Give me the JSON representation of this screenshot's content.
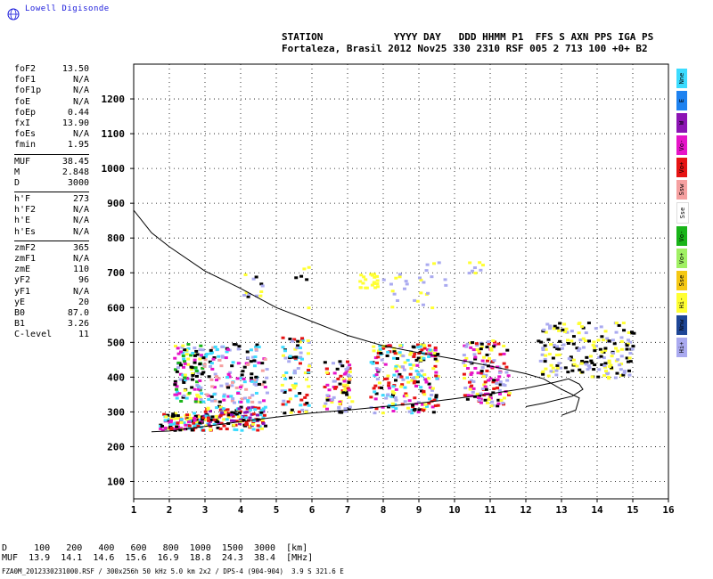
{
  "brand": "Lowell Digisonde",
  "header": {
    "line1": "STATION            YYYY DAY   DDD HHMM P1  FFS S AXN PPS IGA PS",
    "line2": "Fortaleza, Brasil 2012 Nov25 330 2310 RSF 005 2 713 100 +0+ B2"
  },
  "params": [
    {
      "label": "foF2",
      "value": "13.50"
    },
    {
      "label": "foF1",
      "value": "N/A"
    },
    {
      "label": "foF1p",
      "value": "N/A"
    },
    {
      "label": "foE",
      "value": "N/A"
    },
    {
      "label": "foEp",
      "value": "0.44"
    },
    {
      "label": "fxI",
      "value": "13.90"
    },
    {
      "label": "foEs",
      "value": "N/A"
    },
    {
      "label": "fmin",
      "value": "1.95"
    },
    {
      "sep": true
    },
    {
      "label": "MUF",
      "value": "38.45"
    },
    {
      "label": "M",
      "value": "2.848"
    },
    {
      "label": "D",
      "value": "3000"
    },
    {
      "sep": true
    },
    {
      "label": "h'F",
      "value": "273"
    },
    {
      "label": "h'F2",
      "value": "N/A"
    },
    {
      "label": "h'E",
      "value": "N/A"
    },
    {
      "label": "h'Es",
      "value": "N/A"
    },
    {
      "sep": true
    },
    {
      "label": "zmF2",
      "value": "365"
    },
    {
      "label": "zmF1",
      "value": "N/A"
    },
    {
      "label": "zmE",
      "value": "110"
    },
    {
      "label": "yF2",
      "value": "96"
    },
    {
      "label": "yF1",
      "value": "N/A"
    },
    {
      "label": "yE",
      "value": "20"
    },
    {
      "label": "B0",
      "value": "87.0"
    },
    {
      "label": "B1",
      "value": "3.26"
    },
    {
      "label": "C-level",
      "value": "11"
    }
  ],
  "legend": [
    {
      "label": "Nne",
      "color": "#3cdcff"
    },
    {
      "label": "E",
      "color": "#1e82f0"
    },
    {
      "label": "W",
      "color": "#8c14b4"
    },
    {
      "label": "Vo-",
      "color": "#e614c8"
    },
    {
      "label": "Vo+",
      "color": "#e61414"
    },
    {
      "label": "Ssw",
      "color": "#f5a0a0"
    },
    {
      "label": "Sse",
      "color": "#ffffff"
    },
    {
      "label": "Vo-",
      "color": "#19b419"
    },
    {
      "label": "Vo+",
      "color": "#a0f064"
    },
    {
      "label": "Sse",
      "color": "#f5c814"
    },
    {
      "label": "Hi-",
      "color": "#ffff32"
    },
    {
      "label": "Nnw",
      "color": "#1e4696"
    },
    {
      "label": "Hi+",
      "color": "#aaaaf0"
    }
  ],
  "bottom": {
    "d_row": "D     100   200   400   600   800  1000  1500  3000  [km]",
    "muf_row": "MUF  13.9  14.1  14.6  15.6  16.9  18.8  24.3  38.4  [MHz]"
  },
  "footer": "FZA0M_2012330231000.RSF / 300x256h 50 kHz 5.0 km 2x2 / DPS-4 (904-904)  3.9 S 321.6 E",
  "chart_data": {
    "type": "scatter",
    "title": "",
    "xlabel": "",
    "ylabel": "",
    "xlim": [
      1,
      16
    ],
    "ylim": [
      50,
      1300
    ],
    "xticks": [
      1,
      2,
      3,
      4,
      5,
      6,
      7,
      8,
      9,
      10,
      11,
      12,
      13,
      14,
      15,
      16
    ],
    "yticks": [
      100,
      200,
      300,
      400,
      500,
      600,
      700,
      800,
      900,
      1000,
      1100,
      1200
    ],
    "grid": true,
    "series": [
      {
        "name": "Trace X",
        "values": [
          [
            1,
            880
          ],
          [
            1.5,
            815
          ],
          [
            2,
            775
          ],
          [
            3,
            705
          ],
          [
            4,
            655
          ],
          [
            5,
            600
          ],
          [
            6,
            560
          ],
          [
            7,
            520
          ],
          [
            8,
            490
          ],
          [
            9,
            470
          ],
          [
            10,
            452
          ],
          [
            11,
            432
          ],
          [
            12,
            410
          ],
          [
            12.5,
            395
          ],
          [
            13,
            365
          ],
          [
            13.5,
            340
          ],
          [
            13.4,
            305
          ],
          [
            13,
            290
          ]
        ]
      },
      {
        "name": "Trace O",
        "values": [
          [
            1.5,
            243
          ],
          [
            2,
            245
          ],
          [
            3,
            258
          ],
          [
            4,
            272
          ],
          [
            5,
            285
          ],
          [
            6,
            297
          ],
          [
            7,
            305
          ],
          [
            8,
            315
          ],
          [
            9,
            325
          ],
          [
            10,
            338
          ],
          [
            11,
            352
          ],
          [
            12,
            368
          ],
          [
            12.8,
            385
          ],
          [
            13.2,
            395
          ],
          [
            13.5,
            380
          ],
          [
            13.6,
            365
          ],
          [
            13.3,
            345
          ],
          [
            12.5,
            325
          ],
          [
            12,
            315
          ]
        ]
      }
    ],
    "clusters": [
      {
        "x": [
          1.7,
          2.9
        ],
        "y": [
          250,
          300
        ],
        "colors": [
          "#e61414",
          "#ffff32",
          "#3cdcff",
          "#000000",
          "#e614c8"
        ],
        "n": 120
      },
      {
        "x": [
          2.1,
          2.9
        ],
        "y": [
          330,
          500
        ],
        "colors": [
          "#3cdcff",
          "#e614c8",
          "#000000",
          "#ffff32",
          "#aaaaf0",
          "#19b419"
        ],
        "n": 110
      },
      {
        "x": [
          2.9,
          4.7
        ],
        "y": [
          250,
          320
        ],
        "colors": [
          "#e61414",
          "#ffff32",
          "#3cdcff",
          "#000000",
          "#8c14b4"
        ],
        "n": 150
      },
      {
        "x": [
          2.9,
          4.7
        ],
        "y": [
          330,
          500
        ],
        "colors": [
          "#3cdcff",
          "#000000",
          "#e614c8",
          "#aaaaf0",
          "#f5a0a0"
        ],
        "n": 150
      },
      {
        "x": [
          5.1,
          5.9
        ],
        "y": [
          300,
          520
        ],
        "colors": [
          "#ffff32",
          "#3cdcff",
          "#aaaaf0",
          "#e61414",
          "#000000"
        ],
        "n": 80
      },
      {
        "x": [
          6.3,
          7.1
        ],
        "y": [
          300,
          450
        ],
        "colors": [
          "#aaaaf0",
          "#e61414",
          "#ffff32",
          "#000000",
          "#e614c8"
        ],
        "n": 80
      },
      {
        "x": [
          7.6,
          9.5
        ],
        "y": [
          300,
          500
        ],
        "colors": [
          "#ffff32",
          "#aaaaf0",
          "#e614c8",
          "#e61414",
          "#000000",
          "#3cdcff"
        ],
        "n": 240
      },
      {
        "x": [
          10.2,
          11.5
        ],
        "y": [
          320,
          510
        ],
        "colors": [
          "#aaaaf0",
          "#ffff32",
          "#e61414",
          "#000000",
          "#e614c8"
        ],
        "n": 150
      },
      {
        "x": [
          12.3,
          15.0
        ],
        "y": [
          400,
          560
        ],
        "colors": [
          "#ffff32",
          "#aaaaf0",
          "#000000"
        ],
        "n": 200
      },
      {
        "x": [
          4.0,
          4.8
        ],
        "y": [
          630,
          700
        ],
        "colors": [
          "#ffff32",
          "#aaaaf0",
          "#000000"
        ],
        "n": 12
      },
      {
        "x": [
          7.3,
          7.8
        ],
        "y": [
          660,
          700
        ],
        "colors": [
          "#ffff32"
        ],
        "n": 20
      },
      {
        "x": [
          7.7,
          9.8
        ],
        "y": [
          600,
          740
        ],
        "colors": [
          "#ffff32",
          "#aaaaf0"
        ],
        "n": 30
      },
      {
        "x": [
          10.3,
          10.8
        ],
        "y": [
          700,
          740
        ],
        "colors": [
          "#aaaaf0",
          "#ffff32"
        ],
        "n": 8
      },
      {
        "x": [
          5.5,
          5.9
        ],
        "y": [
          600,
          730
        ],
        "colors": [
          "#ffff32",
          "#000000"
        ],
        "n": 6
      }
    ]
  }
}
